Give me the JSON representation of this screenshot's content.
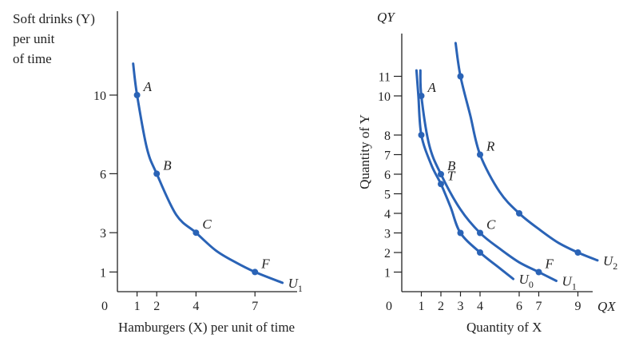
{
  "colors": {
    "curve": "#2a63b6",
    "axis": "#222222",
    "text": "#222222"
  },
  "chart_data": [
    {
      "type": "line",
      "ylabel_lines": [
        "Soft drinks (Y)",
        "per unit",
        "of time"
      ],
      "xlabel": "Hamburgers (X) per unit of time",
      "origin_label": "0",
      "x_ticks": [
        1,
        2,
        4,
        7
      ],
      "y_ticks": [
        1,
        3,
        6,
        10
      ],
      "xlim": [
        0,
        9
      ],
      "ylim": [
        0,
        13.5
      ],
      "series": [
        {
          "name": "U1",
          "curve": [
            [
              0.8,
              11.6
            ],
            [
              1,
              10
            ],
            [
              1.5,
              7.3
            ],
            [
              2,
              6
            ],
            [
              3,
              3.9
            ],
            [
              4,
              3
            ],
            [
              5,
              2.1
            ],
            [
              6,
              1.5
            ],
            [
              7,
              1
            ],
            [
              8.4,
              0.45
            ]
          ],
          "points": [
            {
              "label": "A",
              "x": 1,
              "y": 10
            },
            {
              "label": "B",
              "x": 2,
              "y": 6
            },
            {
              "label": "C",
              "x": 4,
              "y": 3
            },
            {
              "label": "F",
              "x": 7,
              "y": 1
            }
          ]
        }
      ]
    },
    {
      "type": "line",
      "title_y": "QY",
      "title_x": "QX",
      "ylabel": "Quantity of Y",
      "xlabel": "Quantity of X",
      "origin_label": "0",
      "x_ticks": [
        1,
        2,
        3,
        4,
        6,
        7,
        9
      ],
      "y_ticks": [
        1,
        2,
        3,
        4,
        5,
        6,
        7,
        8,
        10,
        11
      ],
      "xlim": [
        0,
        10
      ],
      "ylim": [
        0,
        13.5
      ],
      "series": [
        {
          "name": "U0",
          "curve": [
            [
              0.75,
              11.3
            ],
            [
              0.85,
              10
            ],
            [
              1,
              8
            ],
            [
              1.5,
              6.5
            ],
            [
              2,
              5.5
            ],
            [
              2.5,
              4.3
            ],
            [
              3,
              3
            ],
            [
              4,
              2
            ],
            [
              5,
              1.2
            ],
            [
              5.7,
              0.65
            ]
          ],
          "points": [
            {
              "label": "",
              "x": 1,
              "y": 8
            },
            {
              "label": "T",
              "x": 2,
              "y": 5.5
            },
            {
              "label": "",
              "x": 3,
              "y": 3
            },
            {
              "label": "",
              "x": 4,
              "y": 2
            }
          ]
        },
        {
          "name": "U1",
          "curve": [
            [
              0.95,
              11.3
            ],
            [
              1,
              10
            ],
            [
              1.4,
              7.5
            ],
            [
              2,
              6
            ],
            [
              3,
              4.2
            ],
            [
              4,
              3
            ],
            [
              5,
              2.2
            ],
            [
              6,
              1.5
            ],
            [
              7,
              1
            ],
            [
              7.9,
              0.55
            ]
          ],
          "points": [
            {
              "label": "A",
              "x": 1,
              "y": 10
            },
            {
              "label": "B",
              "x": 2,
              "y": 6
            },
            {
              "label": "C",
              "x": 4,
              "y": 3
            },
            {
              "label": "F",
              "x": 7,
              "y": 1
            }
          ]
        },
        {
          "name": "U2",
          "curve": [
            [
              2.75,
              12.7
            ],
            [
              3,
              11
            ],
            [
              3.5,
              9
            ],
            [
              4,
              7
            ],
            [
              5,
              5.1
            ],
            [
              6,
              4
            ],
            [
              7,
              3.2
            ],
            [
              8,
              2.5
            ],
            [
              9,
              2
            ],
            [
              10,
              1.6
            ]
          ],
          "points": [
            {
              "label": "",
              "x": 3,
              "y": 11
            },
            {
              "label": "R",
              "x": 4,
              "y": 7
            },
            {
              "label": "",
              "x": 6,
              "y": 4
            },
            {
              "label": "",
              "x": 9,
              "y": 2
            }
          ]
        }
      ]
    }
  ]
}
